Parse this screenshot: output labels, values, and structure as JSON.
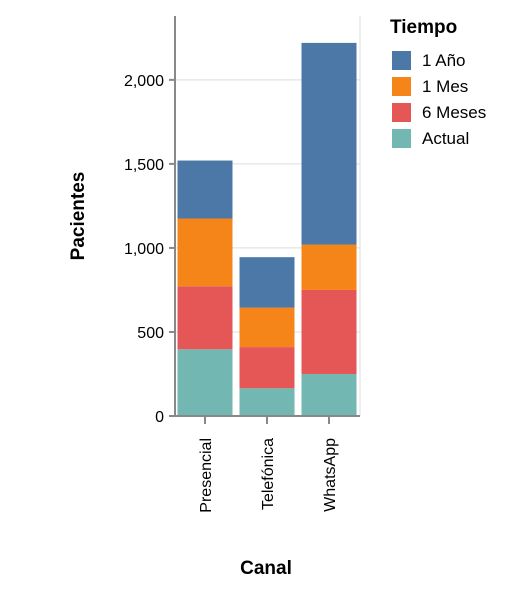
{
  "chart_data": {
    "type": "bar",
    "stacked": true,
    "categories": [
      "Presencial",
      "Telefónica",
      "WhatsApp"
    ],
    "series": [
      {
        "name": "Actual",
        "color": "#72b7b2",
        "values": [
          397,
          165,
          250
        ]
      },
      {
        "name": "6 Meses",
        "color": "#e45756",
        "values": [
          375,
          245,
          500
        ]
      },
      {
        "name": "1 Mes",
        "color": "#f58518",
        "values": [
          403,
          235,
          270
        ]
      },
      {
        "name": "1 Año",
        "color": "#4c78a8",
        "values": [
          345,
          300,
          1200
        ]
      }
    ],
    "xlabel": "Canal",
    "ylabel": "Pacientes",
    "ylim": [
      0,
      2380
    ],
    "yticks": [
      0,
      500,
      1000,
      1500,
      2000
    ],
    "ytick_labels": [
      "0",
      "500",
      "1,000",
      "1,500",
      "2,000"
    ],
    "grid": true,
    "legend": {
      "title": "Tiempo",
      "placement": "right",
      "entries": [
        "1 Año",
        "1 Mes",
        "6 Meses",
        "Actual"
      ]
    }
  }
}
